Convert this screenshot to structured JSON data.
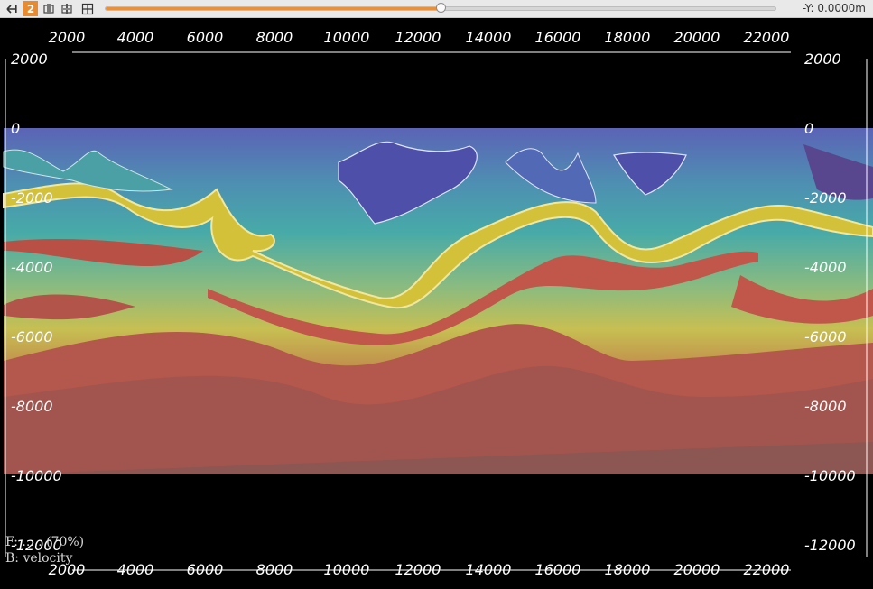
{
  "toolbar": {
    "buttons": [
      {
        "name": "back-arrow-icon"
      },
      {
        "name": "layer-select-icon"
      },
      {
        "name": "layer-split-icon"
      },
      {
        "name": "grid-icon"
      }
    ],
    "view_number": "2",
    "slider": {
      "value_fraction": 0.5
    },
    "y_readout": "-Y: 0.0000m"
  },
  "plot": {
    "x_ticks": [
      "2000",
      "4000",
      "6000",
      "8000",
      "10000",
      "12000",
      "14000",
      "16000",
      "18000",
      "20000",
      "22000"
    ],
    "y_ticks": [
      "2000",
      "0",
      "-2000",
      "-4000",
      "-6000",
      "-8000",
      "-10000",
      "-12000"
    ],
    "colors": {
      "background": "#000000",
      "shallow": "#5564b4",
      "mid": "#4fa9a6",
      "yellow": "#d2c23a",
      "red": "#b65149",
      "deep": "#8c5853"
    }
  },
  "overlay": {
    "foreground": "F: ..... (70%)",
    "background": "B: velocity"
  }
}
